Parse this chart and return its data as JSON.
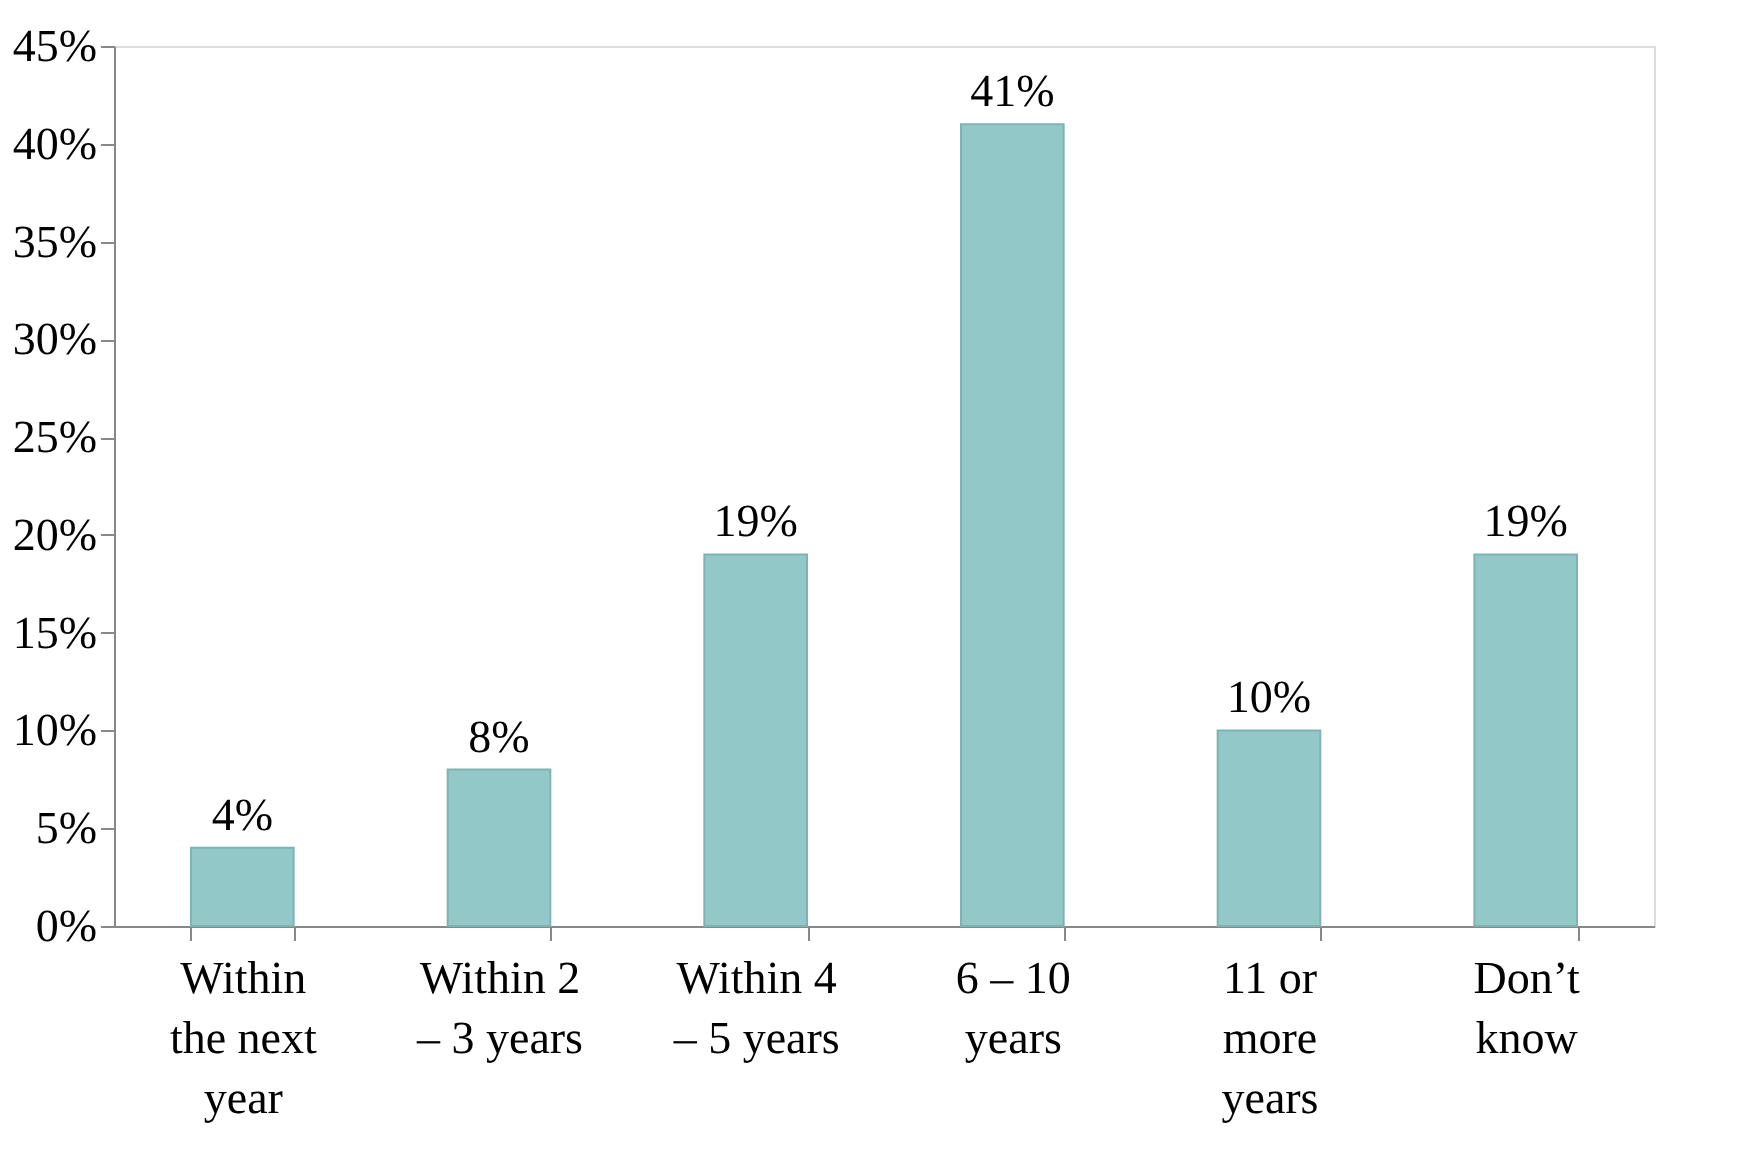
{
  "chart_data": {
    "type": "bar",
    "categories": [
      "Within the next year",
      "Within 2 – 3 years",
      "Within 4 – 5 years",
      "6 – 10 years",
      "11 or more years",
      "Don’t know"
    ],
    "values": [
      4,
      8,
      19,
      41,
      10,
      19
    ],
    "value_labels": [
      "4%",
      "8%",
      "19%",
      "41%",
      "10%",
      "19%"
    ],
    "color": "#93c8c8",
    "ylim": [
      0,
      45
    ],
    "yticks": [
      {
        "value": 0,
        "label": "0%"
      },
      {
        "value": 5,
        "label": "5%"
      },
      {
        "value": 10,
        "label": "10%"
      },
      {
        "value": 15,
        "label": "15%"
      },
      {
        "value": 20,
        "label": "20%"
      },
      {
        "value": 25,
        "label": "25%"
      },
      {
        "value": 30,
        "label": "30%"
      },
      {
        "value": 35,
        "label": "35%"
      },
      {
        "value": 40,
        "label": "40%"
      },
      {
        "value": 45,
        "label": "45%"
      }
    ],
    "grid": false
  }
}
